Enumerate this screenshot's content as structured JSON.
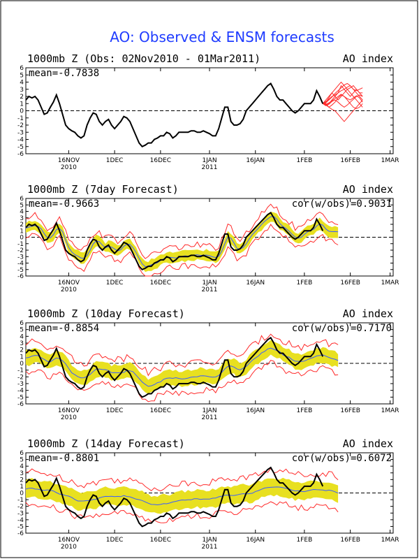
{
  "page_title": "AO: Observed & ENSM forecasts",
  "colors": {
    "title": "#1f3cff",
    "observed": "#000000",
    "ensemble_members": "#ff2a2a",
    "ensemble_mean": "#3a5dff",
    "spread_band": "#e8e020",
    "envelope": "#ff2a2a",
    "zero_line": "#000000"
  },
  "x_axis_ticks": [
    {
      "label": "16NOV",
      "year": "2010"
    },
    {
      "label": "1DEC",
      "year": ""
    },
    {
      "label": "16DEC",
      "year": ""
    },
    {
      "label": "1JAN",
      "year": "2011"
    },
    {
      "label": "16JAN",
      "year": ""
    },
    {
      "label": "1FEB",
      "year": ""
    },
    {
      "label": "16FEB",
      "year": ""
    },
    {
      "label": "1MAR",
      "year": ""
    }
  ],
  "y_axis_ticks": [
    "6",
    "5",
    "4",
    "3",
    "2",
    "1",
    "0",
    "-1",
    "-2",
    "-3",
    "-4",
    "-5",
    "-6"
  ],
  "chart_data": [
    {
      "type": "line",
      "title_left": "1000mb Z (Obs: 02Nov2010 - 01Mar2011)",
      "title_right": "AO index",
      "stat_left": "mean=-0.7838",
      "stat_right": "",
      "ylim": [
        -6,
        6
      ],
      "zero_line": "dashed",
      "x_start": "02Nov2010",
      "observed": [
        1.5,
        2,
        1.8,
        2,
        1.5,
        0.5,
        -0.5,
        -0.3,
        0.5,
        1.2,
        2.2,
        1,
        -0.5,
        -2,
        -2.5,
        -2.8,
        -3,
        -3.5,
        -3.8,
        -3.5,
        -2,
        -1,
        -0.3,
        -0.5,
        -1.5,
        -2,
        -1.5,
        -1.2,
        -2,
        -2.5,
        -2,
        -1.5,
        -0.8,
        -1,
        -1.5,
        -2.5,
        -3.5,
        -4.5,
        -5,
        -4.8,
        -4.5,
        -4.5,
        -4,
        -3.8,
        -3.5,
        -3.5,
        -3,
        -3.2,
        -3.8,
        -3.5,
        -3,
        -3,
        -3,
        -3,
        -2.8,
        -2.8,
        -3,
        -3,
        -2.8,
        -3,
        -3.2,
        -3.5,
        -3.5,
        -2.5,
        -1,
        0.5,
        0.5,
        -1.5,
        -2,
        -2,
        -1.8,
        -1.2,
        0,
        0.5,
        1,
        1.5,
        2,
        2.5,
        3,
        3.5,
        3.8,
        3,
        2,
        1.5,
        1.5,
        1,
        0.5,
        0,
        -0.3,
        0,
        0.5,
        1,
        1,
        1,
        1.5,
        2.8,
        2,
        1
      ],
      "ensemble_members": [
        [
          1,
          1.5,
          2,
          2.5,
          2,
          1.5,
          2,
          2.5,
          3,
          2.5,
          2,
          1.5,
          1,
          0.5
        ],
        [
          1,
          0.8,
          1,
          1.5,
          2,
          2.5,
          3.5,
          3,
          2.5,
          2,
          2.5,
          3,
          2.5,
          2
        ],
        [
          1,
          1,
          0.5,
          0.8,
          1.2,
          1.8,
          2.2,
          2,
          1.5,
          1,
          0.5,
          0.3,
          0.5,
          1
        ],
        [
          1,
          1.2,
          1.8,
          2.5,
          3,
          3.5,
          4,
          3.5,
          3,
          3.2,
          3.5,
          3,
          2.5,
          2.5
        ],
        [
          1,
          0.8,
          0.5,
          0.2,
          0,
          -0.5,
          -1,
          -1.5,
          -1,
          -0.5,
          0,
          0.5,
          1,
          1.5
        ],
        [
          1,
          1.3,
          1.6,
          2,
          2.2,
          2.5,
          2.8,
          3,
          3.3,
          3.5,
          3,
          2.5,
          2,
          1.5
        ],
        [
          1,
          0.9,
          1.1,
          1.4,
          1.7,
          2,
          2.3,
          2,
          1.7,
          1.5,
          1.8,
          2.1,
          1.8,
          1.2
        ],
        [
          1,
          1.1,
          1.5,
          1.9,
          2.4,
          2.8,
          3.2,
          3.6,
          3.8,
          3.5,
          3,
          2.8,
          3,
          3.2
        ],
        [
          1,
          0.7,
          0.9,
          1.3,
          1.5,
          1.2,
          0.8,
          0.5,
          0.8,
          1.2,
          1.6,
          2,
          2.2,
          2
        ]
      ]
    },
    {
      "type": "line",
      "title_left": "1000mb Z (7day Forecast)",
      "title_right": "AO index",
      "stat_left": "mean=-0.9663",
      "stat_right": "cor(w/obs)=0.9031",
      "ylim": [
        -6,
        6
      ],
      "zero_line": "dashed",
      "lead_days": 7
    },
    {
      "type": "line",
      "title_left": "1000mb Z (10day Forecast)",
      "title_right": "AO index",
      "stat_left": "mean=-0.8854",
      "stat_right": "cor(w/obs)=0.7170",
      "ylim": [
        -6,
        6
      ],
      "zero_line": "dashed",
      "lead_days": 10
    },
    {
      "type": "line",
      "title_left": "1000mb Z (14day Forecast)",
      "title_right": "AO index",
      "stat_left": "mean=-0.8801",
      "stat_right": "cor(w/obs)=0.6072",
      "ylim": [
        -6,
        6
      ],
      "zero_line": "dashed",
      "lead_days": 14
    }
  ]
}
